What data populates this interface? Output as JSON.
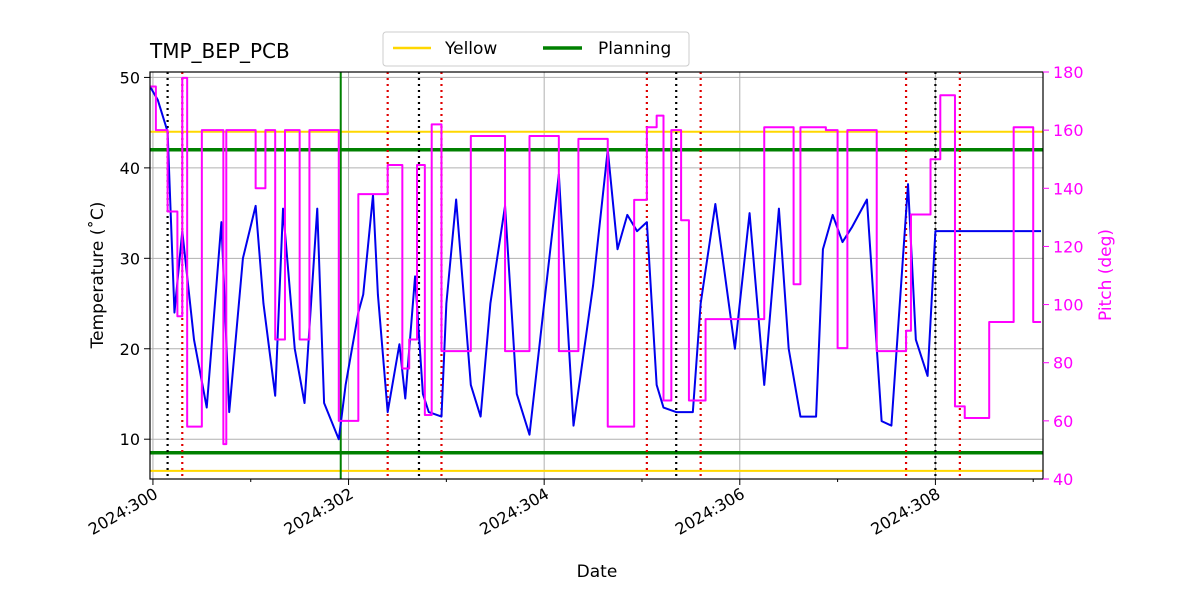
{
  "chart_data": {
    "type": "line",
    "title": "TMP_BEP_PCB",
    "xlabel": "Date",
    "ylabel": "Temperature ($^\\circ$C)",
    "ylabel_display": "Temperature (˚C)",
    "y2label": "Pitch (deg)",
    "xlim": [
      299.97,
      309.1
    ],
    "ylim": [
      5.6,
      50.6
    ],
    "y2lim": [
      40,
      180
    ],
    "x_ticks": [
      300,
      302,
      304,
      306,
      308
    ],
    "x_tick_labels": [
      "2024:300",
      "2024:302",
      "2024:304",
      "2024:306",
      "2024:308"
    ],
    "y_ticks": [
      10,
      20,
      30,
      40,
      50
    ],
    "y2_ticks": [
      40,
      60,
      80,
      100,
      120,
      140,
      160,
      180
    ],
    "grid": true,
    "legend_position": "top-center",
    "legend": [
      {
        "label": "Yellow",
        "color": "#FFD700"
      },
      {
        "label": "Planning",
        "color": "#008000"
      }
    ],
    "colors": {
      "temperature": "#0000EE",
      "pitch": "#FF00FF",
      "yellow": "#FFD700",
      "planning": "#008000",
      "red_marker": "#E00000",
      "black_marker": "#000000",
      "grid": "#B0B0B0"
    },
    "limits": {
      "yellow": [
        44.0,
        6.5
      ],
      "planning": [
        42.0,
        8.5
      ]
    },
    "now_marker_x": 301.92,
    "red_vlines": [
      300.3,
      302.4,
      302.95,
      305.05,
      305.6,
      307.7,
      308.25
    ],
    "black_vlines": [
      300.15,
      302.72,
      305.35,
      308.0
    ],
    "series": [
      {
        "name": "Temperature",
        "axis": "left",
        "x": [
          299.97,
          300.05,
          300.15,
          300.22,
          300.3,
          300.42,
          300.55,
          300.7,
          300.78,
          300.92,
          301.05,
          301.13,
          301.25,
          301.33,
          301.45,
          301.55,
          301.68,
          301.75,
          301.9,
          301.97,
          302.1,
          302.15,
          302.25,
          302.3,
          302.4,
          302.52,
          302.58,
          302.68,
          302.76,
          302.82,
          302.95,
          303.0,
          303.1,
          303.25,
          303.35,
          303.45,
          303.6,
          303.72,
          303.85,
          304.0,
          304.15,
          304.3,
          304.5,
          304.65,
          304.75,
          304.85,
          304.95,
          305.05,
          305.15,
          305.22,
          305.35,
          305.42,
          305.48,
          305.52,
          305.6,
          305.75,
          305.95,
          306.1,
          306.25,
          306.4,
          306.5,
          306.62,
          306.78,
          306.85,
          306.95,
          307.05,
          307.15,
          307.3,
          307.45,
          307.55,
          307.72,
          307.8,
          307.92,
          308.0,
          308.08,
          308.15,
          308.25,
          308.35,
          308.5,
          308.6,
          308.7,
          308.85,
          308.95,
          309.08
        ],
        "values": [
          49.0,
          47.5,
          44.0,
          24.0,
          33.0,
          21.0,
          13.5,
          34.0,
          13.0,
          30.0,
          35.8,
          25.0,
          14.8,
          35.5,
          20.0,
          14.0,
          35.5,
          14.0,
          10.0,
          16.0,
          24.0,
          26.0,
          37.0,
          26.0,
          13.0,
          20.5,
          14.5,
          28.0,
          15.0,
          13.0,
          12.5,
          25.0,
          36.5,
          16.0,
          12.5,
          25.0,
          35.8,
          15.0,
          10.5,
          25.0,
          39.3,
          11.5,
          27.0,
          42.0,
          31.0,
          34.8,
          33.0,
          34.0,
          16.0,
          13.5,
          13.0,
          13.0,
          13.0,
          13.0,
          25.0,
          36.0,
          20.0,
          35.0,
          16.0,
          35.5,
          20.0,
          12.5,
          12.5,
          31.0,
          34.8,
          31.8,
          33.5,
          36.5,
          12.0,
          11.5,
          38.2,
          21.0,
          17.0,
          33.0,
          33.0,
          33.0,
          33.0,
          33.0,
          33.0,
          33.0,
          33.0,
          33.0,
          33.0,
          33.0
        ]
      },
      {
        "name": "Pitch",
        "axis": "right",
        "x": [
          299.97,
          300.03,
          300.1,
          300.15,
          300.25,
          300.3,
          300.35,
          300.5,
          300.6,
          300.72,
          300.75,
          300.9,
          301.05,
          301.15,
          301.25,
          301.35,
          301.5,
          301.6,
          301.75,
          301.9,
          302.0,
          302.1,
          302.2,
          302.4,
          302.55,
          302.62,
          302.7,
          302.78,
          302.85,
          302.95,
          303.05,
          303.25,
          303.5,
          303.6,
          303.72,
          303.85,
          304.0,
          304.15,
          304.35,
          304.52,
          304.65,
          304.8,
          304.92,
          305.05,
          305.15,
          305.22,
          305.3,
          305.4,
          305.48,
          305.55,
          305.65,
          305.8,
          306.0,
          306.25,
          306.45,
          306.55,
          306.62,
          306.75,
          306.88,
          307.0,
          307.1,
          307.25,
          307.4,
          307.55,
          307.7,
          307.75,
          307.85,
          307.95,
          308.05,
          308.12,
          308.2,
          308.3,
          308.45,
          308.55,
          308.7,
          308.8,
          308.9,
          309.0,
          309.08
        ],
        "values": [
          175,
          160,
          160,
          132,
          96,
          178,
          58,
          160,
          160,
          52,
          160,
          160,
          140,
          160,
          88,
          160,
          88,
          160,
          160,
          60,
          60,
          138,
          138,
          148,
          78,
          88,
          148,
          62,
          162,
          84,
          84,
          158,
          158,
          84,
          84,
          158,
          158,
          84,
          157,
          157,
          58,
          58,
          136,
          161,
          165,
          67,
          160,
          129,
          67,
          67,
          95,
          95,
          95,
          161,
          161,
          107,
          161,
          161,
          160,
          85,
          160,
          160,
          84,
          84,
          91,
          131,
          131,
          150,
          172,
          172,
          65,
          61,
          61,
          94,
          94,
          161,
          161,
          94,
          94
        ]
      }
    ]
  }
}
